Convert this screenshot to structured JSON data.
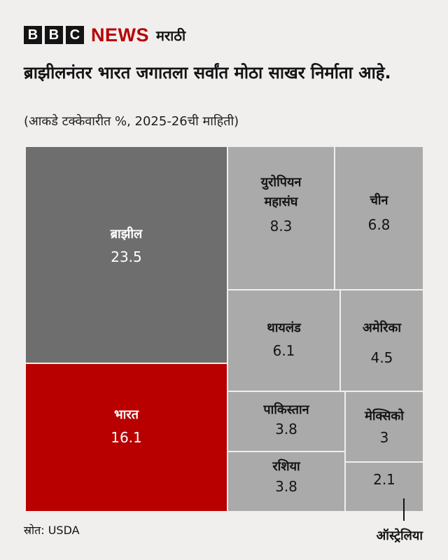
{
  "brand": {
    "bbc_letters": [
      "B",
      "B",
      "C"
    ],
    "news": "NEWS",
    "language": "मराठी"
  },
  "chart_data": {
    "type": "treemap",
    "title": "ब्राझीलनंतर भारत जगातला सर्वांत मोठा साखर निर्माता आहे.",
    "subtitle": "(आकडे टक्केवारीत %, 2025-26ची माहिती)",
    "unit": "%",
    "items": [
      {
        "name": "ब्राझील",
        "value": 23.5,
        "color": "#6e6e6e"
      },
      {
        "name": "भारत",
        "value": 16.1,
        "color": "#b80000"
      },
      {
        "name": "युरोपियन महासंघ",
        "value": 8.3,
        "color": "#aaaaaa"
      },
      {
        "name": "चीन",
        "value": 6.8,
        "color": "#aaaaaa"
      },
      {
        "name": "थायलंड",
        "value": 6.1,
        "color": "#aaaaaa"
      },
      {
        "name": "अमेरिका",
        "value": 4.5,
        "color": "#aaaaaa"
      },
      {
        "name": "पाकिस्तान",
        "value": 3.8,
        "color": "#aaaaaa"
      },
      {
        "name": "मेक्सिको",
        "value": 3,
        "color": "#aaaaaa"
      },
      {
        "name": "रशिया",
        "value": 3.8,
        "color": "#aaaaaa"
      },
      {
        "name": "ऑस्ट्रेलिया",
        "value": 2.1,
        "color": "#aaaaaa"
      }
    ]
  },
  "source": "स्रोत: USDA"
}
